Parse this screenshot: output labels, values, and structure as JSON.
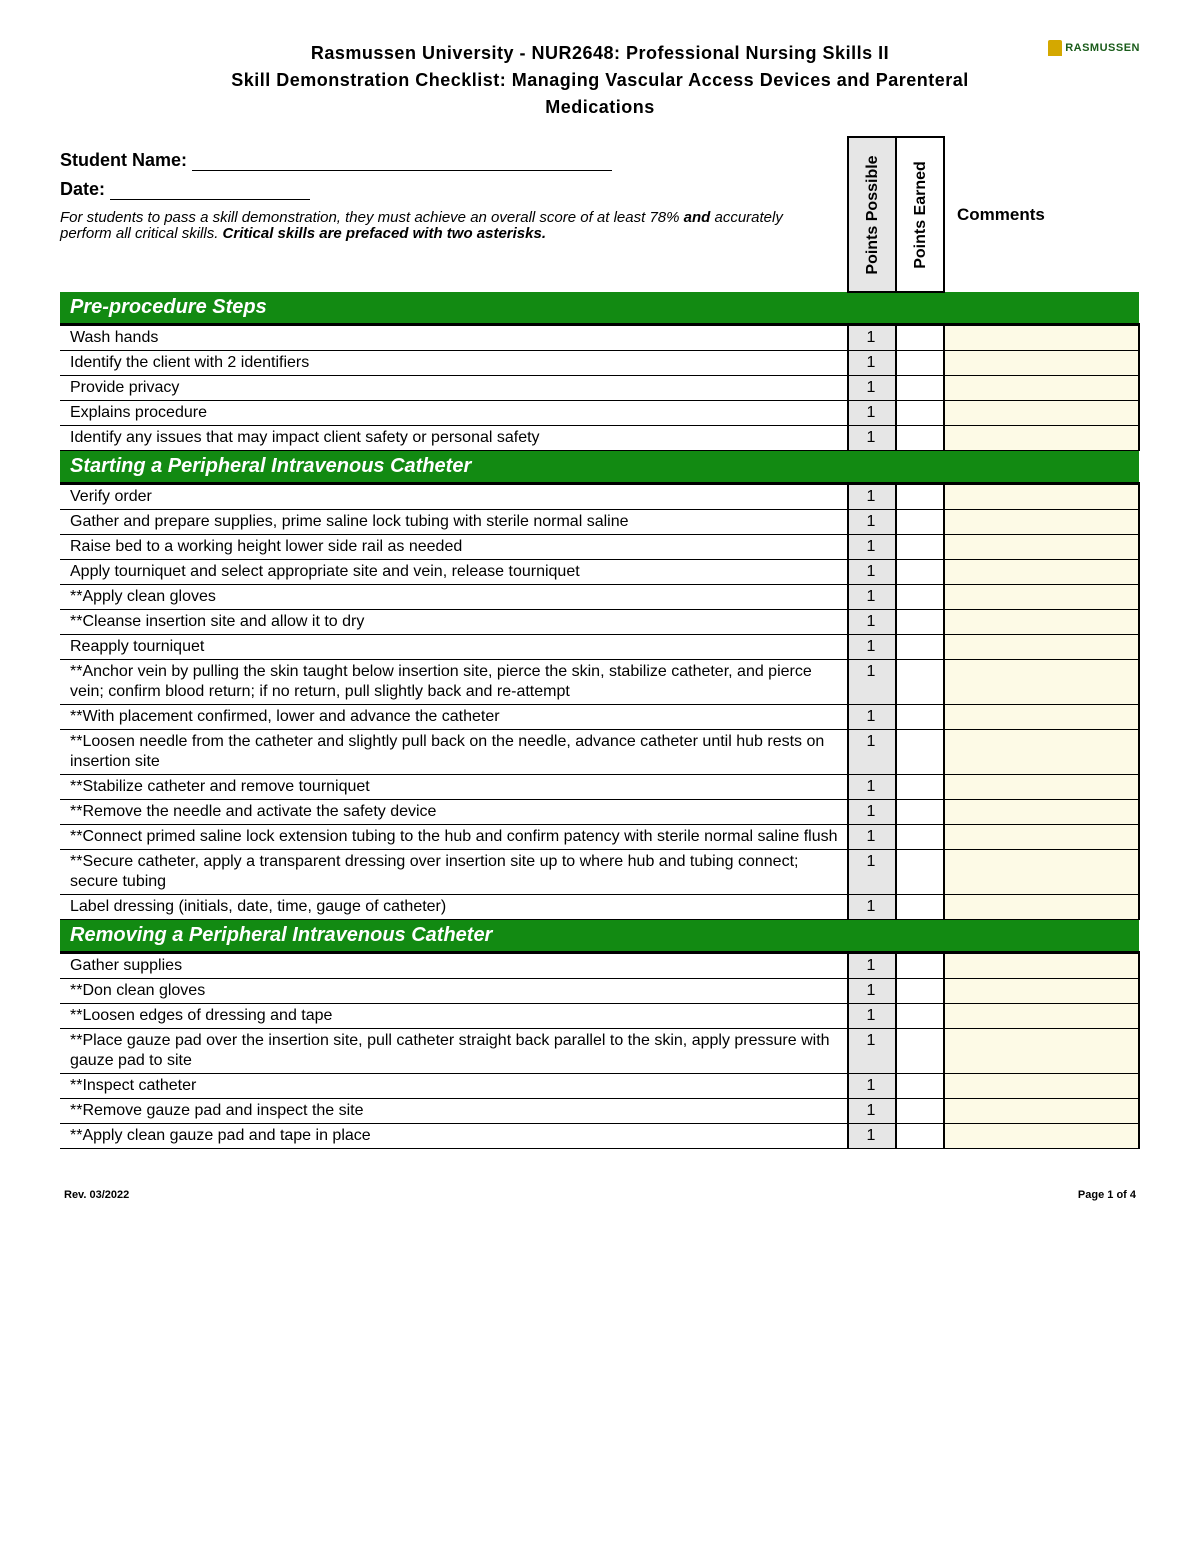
{
  "header": {
    "line1": "Rasmussen University - NUR2648: Professional Nursing Skills II",
    "line2": "Skill Demonstration Checklist: Managing Vascular Access Devices and Parenteral",
    "line3": "Medications",
    "logo_text": "RASMUSSEN"
  },
  "fields": {
    "student_label": "Student Name:",
    "date_label": "Date:"
  },
  "instructions": {
    "text1": "For students to pass a skill demonstration, they must achieve an overall score of at least 78% ",
    "bold1": "and",
    "text2": " accurately perform all critical skills. ",
    "bold2": "Critical skills are prefaced with two asterisks."
  },
  "column_headers": {
    "possible": "Points Possible",
    "earned": "Points Earned",
    "comments": "Comments"
  },
  "sections": [
    {
      "title": "Pre-procedure Steps",
      "rows": [
        {
          "step": "Wash hands",
          "pts": "1"
        },
        {
          "step": "Identify the client with 2 identifiers",
          "pts": "1"
        },
        {
          "step": "Provide privacy",
          "pts": "1"
        },
        {
          "step": "Explains procedure",
          "pts": "1"
        },
        {
          "step": "Identify any issues that may impact client safety or personal safety",
          "pts": "1"
        }
      ]
    },
    {
      "title": "Starting a Peripheral Intravenous Catheter",
      "rows": [
        {
          "step": "Verify order",
          "pts": "1"
        },
        {
          "step": "Gather and prepare supplies, prime saline lock tubing with sterile normal saline",
          "pts": "1"
        },
        {
          "step": "Raise bed to a working height lower side rail as needed",
          "pts": "1"
        },
        {
          "step": "Apply tourniquet and select appropriate site and vein, release tourniquet",
          "pts": "1"
        },
        {
          "step": "**Apply clean gloves",
          "pts": "1"
        },
        {
          "step": "**Cleanse insertion site and allow it to dry",
          "pts": "1"
        },
        {
          "step": "Reapply tourniquet",
          "pts": "1"
        },
        {
          "step": "**Anchor vein by pulling the skin taught below insertion site, pierce the skin, stabilize catheter, and pierce vein; confirm blood return; if no return, pull slightly back and re-attempt",
          "pts": "1"
        },
        {
          "step": "**With placement confirmed, lower and advance the catheter",
          "pts": "1"
        },
        {
          "step": "**Loosen needle from the catheter and slightly pull back on the needle, advance catheter until hub rests on insertion site",
          "pts": "1"
        },
        {
          "step": "**Stabilize catheter and remove tourniquet",
          "pts": "1"
        },
        {
          "step": "**Remove the needle and activate the safety device",
          "pts": "1"
        },
        {
          "step": "**Connect primed saline lock extension tubing to the hub and confirm patency with sterile normal saline flush",
          "pts": "1"
        },
        {
          "step": "**Secure catheter, apply a transparent dressing over insertion site up to where hub and tubing connect; secure tubing",
          "pts": "1"
        },
        {
          "step": "Label dressing (initials, date, time, gauge of catheter)",
          "pts": "1"
        }
      ]
    },
    {
      "title": "Removing a Peripheral Intravenous Catheter",
      "rows": [
        {
          "step": "Gather supplies",
          "pts": "1"
        },
        {
          "step": "**Don clean gloves",
          "pts": "1"
        },
        {
          "step": "**Loosen edges of dressing and tape",
          "pts": "1"
        },
        {
          "step": "**Place gauze pad over the insertion site, pull catheter straight back parallel to the skin, apply pressure with gauze pad to site",
          "pts": "1"
        },
        {
          "step": "**Inspect catheter",
          "pts": "1"
        },
        {
          "step": "**Remove gauze pad and inspect the site",
          "pts": "1"
        },
        {
          "step": "**Apply clean gauze pad and tape in place",
          "pts": "1"
        }
      ]
    }
  ],
  "footer": {
    "rev": "Rev. 03/2022",
    "page": "Page 1 of 4"
  },
  "colors": {
    "section_green": "#128a12",
    "points_gray": "#e6e6e6",
    "comments_cream": "#fdfae6"
  }
}
